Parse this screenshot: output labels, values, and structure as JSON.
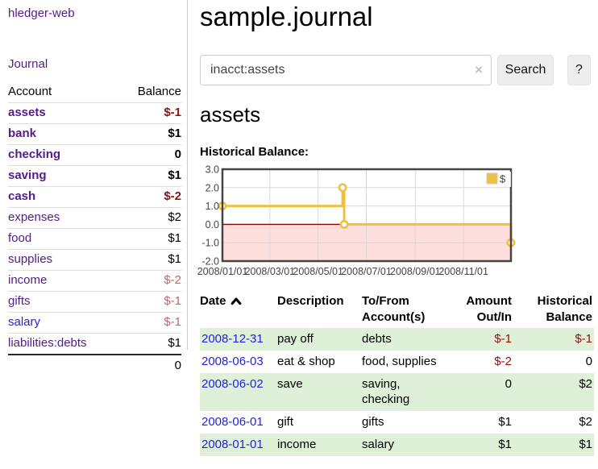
{
  "app": {
    "brand": "hledger-web",
    "nav_journal": "Journal"
  },
  "header": {
    "title": "sample.journal"
  },
  "search": {
    "value": "inacct:assets",
    "clear_icon": "×",
    "button_label": "Search",
    "help_label": "?"
  },
  "sidebar": {
    "accounts_header": {
      "account": "Account",
      "balance": "Balance"
    },
    "accounts": [
      {
        "name": "assets",
        "depth": 1,
        "balance": "$-1",
        "bold": true,
        "neg": "strong",
        "link": "purple"
      },
      {
        "name": "bank",
        "depth": 2,
        "balance": "$1",
        "bold": true,
        "neg": "none",
        "link": "purple"
      },
      {
        "name": "checking",
        "depth": 3,
        "balance": "0",
        "bold": true,
        "neg": "none",
        "link": "purple"
      },
      {
        "name": "saving",
        "depth": 3,
        "balance": "$1",
        "bold": true,
        "neg": "none",
        "link": "purple"
      },
      {
        "name": "cash",
        "depth": 2,
        "balance": "$-2",
        "bold": true,
        "neg": "strong",
        "link": "purple"
      },
      {
        "name": "expenses",
        "depth": 1,
        "balance": "$2",
        "bold": false,
        "neg": "none",
        "link": "purple"
      },
      {
        "name": "food",
        "depth": 2,
        "balance": "$1",
        "bold": false,
        "neg": "none",
        "link": "purple"
      },
      {
        "name": "supplies",
        "depth": 2,
        "balance": "$1",
        "bold": false,
        "neg": "none",
        "link": "purple"
      },
      {
        "name": "income",
        "depth": 1,
        "balance": "$-2",
        "bold": false,
        "neg": "weak",
        "link": "purple"
      },
      {
        "name": "gifts",
        "depth": 2,
        "balance": "$-1",
        "bold": false,
        "neg": "weak",
        "link": "purple"
      },
      {
        "name": "salary",
        "depth": 2,
        "balance": "$-1",
        "bold": false,
        "neg": "weak",
        "link": "blue"
      },
      {
        "name": "liabilities:debts",
        "depth": 1,
        "balance": "$1",
        "bold": false,
        "neg": "none",
        "link": "purple"
      }
    ],
    "total": "0"
  },
  "account_page": {
    "title": "assets",
    "chart_label": "Historical Balance:"
  },
  "chart_data": {
    "type": "line",
    "title": "Historical Balance",
    "step": true,
    "series": [
      {
        "name": "$",
        "color": "#edc240",
        "points": [
          [
            "2008-01-01",
            1
          ],
          [
            "2008-06-01",
            2
          ],
          [
            "2008-06-03",
            0
          ],
          [
            "2008-12-31",
            -1
          ]
        ]
      }
    ],
    "xlim": [
      "2008-01-01",
      "2008-12-31"
    ],
    "ylim": [
      -2,
      3
    ],
    "x_ticks": [
      "2008/01/01",
      "2008/03/01",
      "2008/05/01",
      "2008/07/01",
      "2008/09/01",
      "2008/11/01"
    ],
    "y_ticks": [
      3.0,
      2.0,
      1.0,
      0.0,
      -1.0,
      -2.0
    ],
    "grid": true,
    "legend": {
      "label": "$",
      "position": "top-right"
    },
    "colors": {
      "line": "#edc240",
      "marker_fill": "#ffffff",
      "negative_region_fill": "#ffdede",
      "zero_line": "#8b0000",
      "gridline": "#d8d8d8",
      "plot_border": "#444444",
      "tick_text": "#444444"
    }
  },
  "register": {
    "columns": [
      "Date",
      "Description",
      "To/From Account(s)",
      "Amount Out/In",
      "Historical Balance"
    ],
    "sort": {
      "column": "Date",
      "direction": "ascending"
    },
    "rows": [
      {
        "date": "2008-12-31",
        "description": "pay off",
        "accounts": "debts",
        "amount": "$-1",
        "amount_neg": true,
        "balance": "$-1",
        "balance_neg": true,
        "stripe": true
      },
      {
        "date": "2008-06-03",
        "description": "eat & shop",
        "accounts": "food, supplies",
        "amount": "$-2",
        "amount_neg": true,
        "balance": "0",
        "balance_neg": false,
        "stripe": false
      },
      {
        "date": "2008-06-02",
        "description": "save",
        "accounts": "saving, checking",
        "amount": "0",
        "amount_neg": false,
        "balance": "$2",
        "balance_neg": false,
        "stripe": true
      },
      {
        "date": "2008-06-01",
        "description": "gift",
        "accounts": "gifts",
        "amount": "$1",
        "amount_neg": false,
        "balance": "$2",
        "balance_neg": false,
        "stripe": false
      },
      {
        "date": "2008-01-01",
        "description": "income",
        "accounts": "salary",
        "amount": "$1",
        "amount_neg": false,
        "balance": "$1",
        "balance_neg": false,
        "stripe": true
      }
    ]
  },
  "colors": {
    "link_purple": "#551a8b",
    "link_blue": "#2422dd",
    "negative_strong": "#8b1313",
    "negative_weak": "#c36565",
    "register_negative": "#9c0c0c",
    "stripe_green": "#dff0d8"
  }
}
